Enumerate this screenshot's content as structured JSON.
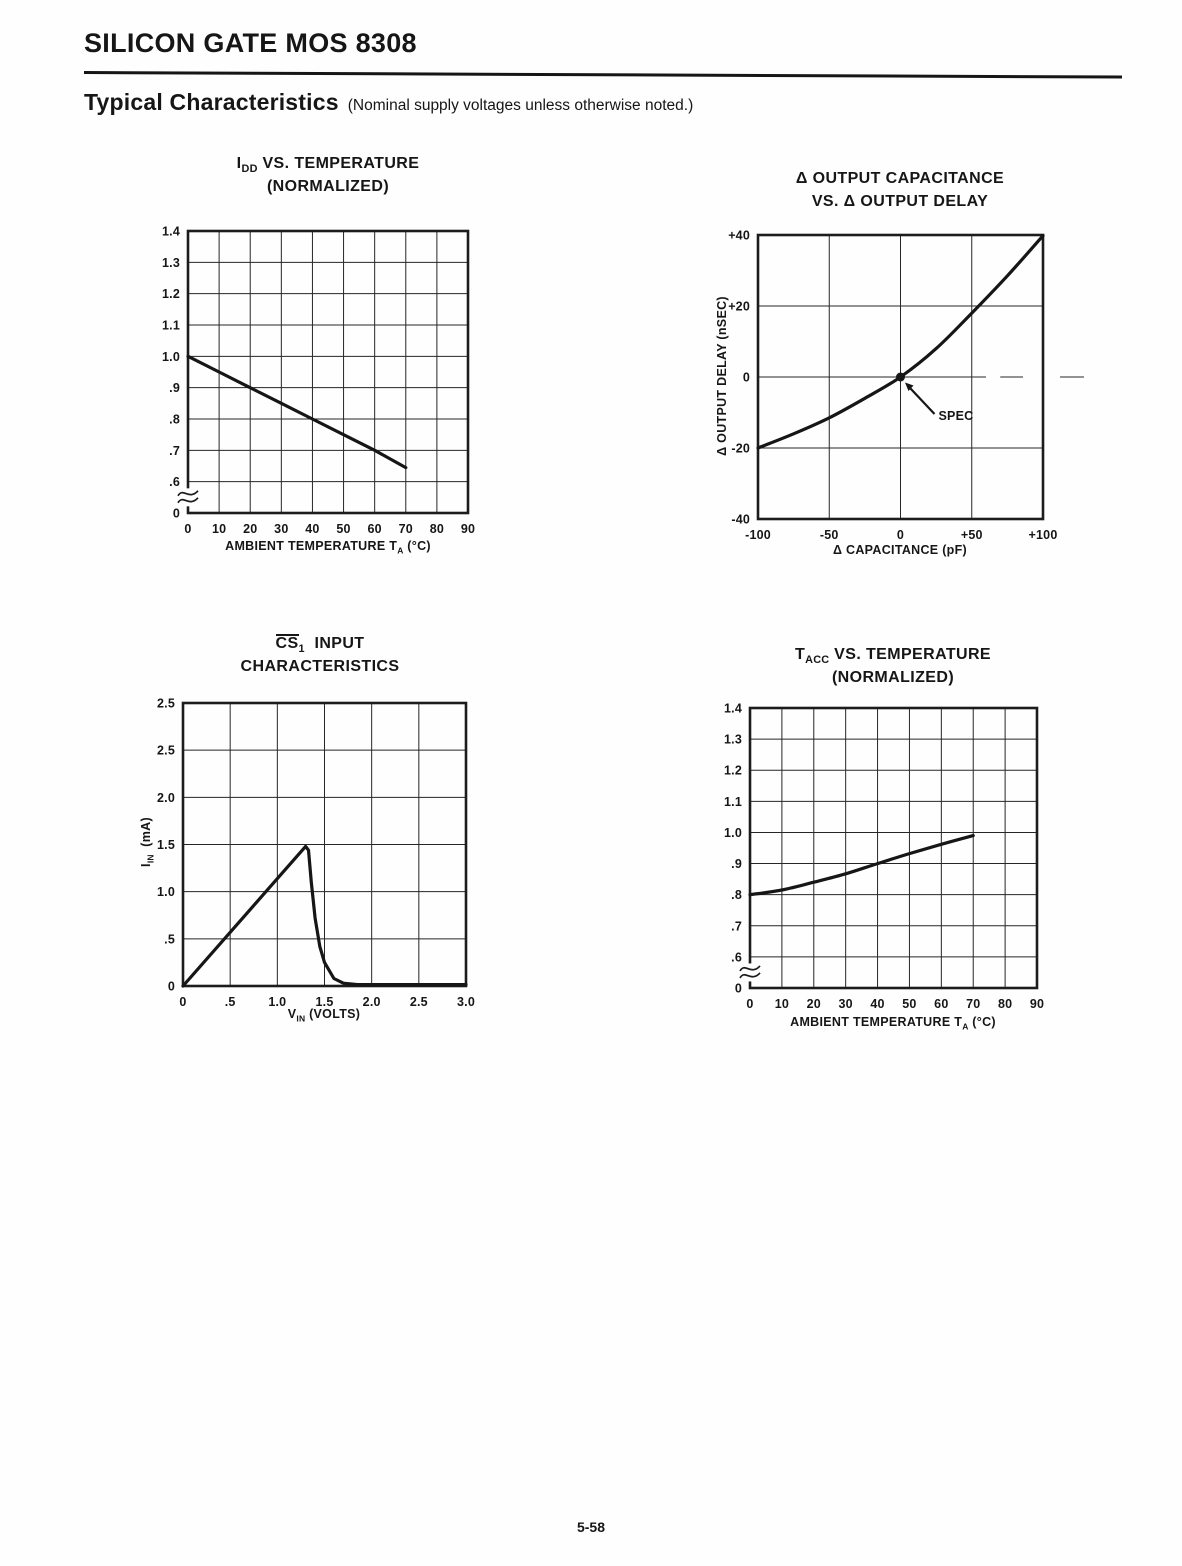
{
  "page": {
    "header_title": "SILICON GATE MOS 8308",
    "section_title": "Typical Characteristics",
    "section_note": "(Nominal supply voltages unless otherwise noted.)",
    "page_number": "5-58"
  },
  "colors": {
    "ink": "#161616",
    "paper": "#fefefe"
  },
  "chart_data": [
    {
      "id": "idd-vs-temperature",
      "type": "line",
      "grid": true,
      "title_lines": [
        [
          {
            "t": "I"
          },
          {
            "t": "DD",
            "sub": true
          },
          {
            "t": " VS. TEMPERATURE"
          }
        ],
        [
          {
            "t": "(NORMALIZED)"
          }
        ]
      ],
      "xlabel": [
        {
          "t": "AMBIENT TEMPERATURE T"
        },
        {
          "t": "A",
          "sub": true
        },
        {
          "t": " (°C)"
        }
      ],
      "ylabel": null,
      "x_ticks": [
        "0",
        "10",
        "20",
        "30",
        "40",
        "50",
        "60",
        "70",
        "80",
        "90"
      ],
      "x_range": [
        0,
        90
      ],
      "y_lines": [
        "1.4",
        "1.3",
        "1.2",
        "1.1",
        "1.0",
        ".9",
        ".8",
        ".7",
        ".6",
        "0"
      ],
      "y_break_after_line": 8,
      "y_map": {
        "v_top": 1.4,
        "v_per_row": 0.1
      },
      "axis_note": "y-axis broken between 0 and .6",
      "series": [
        {
          "name": "IDD (normalized)",
          "points": [
            [
              0,
              1.0
            ],
            [
              10,
              0.95
            ],
            [
              20,
              0.9
            ],
            [
              30,
              0.85
            ],
            [
              40,
              0.8
            ],
            [
              50,
              0.75
            ],
            [
              60,
              0.7
            ],
            [
              70,
              0.645
            ]
          ]
        }
      ]
    },
    {
      "id": "output-capacitance-vs-delay",
      "type": "line",
      "grid": true,
      "title_lines": [
        [
          {
            "t": "Δ OUTPUT CAPACITANCE"
          }
        ],
        [
          {
            "t": "VS. Δ OUTPUT DELAY"
          }
        ]
      ],
      "xlabel": [
        {
          "t": "Δ CAPACITANCE (pF)"
        }
      ],
      "ylabel": [
        {
          "t": "Δ OUTPUT DELAY (nSEC)"
        }
      ],
      "x_ticks": [
        "-100",
        "-50",
        "0",
        "+50",
        "+100"
      ],
      "x_range": [
        -100,
        100
      ],
      "y_lines": [
        "+40",
        "+20",
        "0",
        "-20",
        "-40"
      ],
      "y_map": {
        "v_top": 40,
        "v_per_row": 20
      },
      "zero_dashed_right": true,
      "series": [
        {
          "name": "delta output delay vs delta capacitance",
          "points": [
            [
              -100,
              -20
            ],
            [
              -75,
              -16
            ],
            [
              -50,
              -11.5
            ],
            [
              -25,
              -6
            ],
            [
              0,
              0
            ],
            [
              25,
              8
            ],
            [
              50,
              18
            ],
            [
              75,
              28.5
            ],
            [
              100,
              39.8
            ]
          ]
        }
      ],
      "annotation": {
        "label": "SPEC",
        "at": [
          0,
          0
        ]
      }
    },
    {
      "id": "cs1-input-characteristics",
      "type": "line",
      "grid": true,
      "title_lines": [
        [
          {
            "t": "CS",
            "over": true
          },
          {
            "t": "1",
            "sub": true
          },
          {
            "t": "  INPUT"
          }
        ],
        [
          {
            "t": "CHARACTERISTICS"
          }
        ]
      ],
      "xlabel": [
        {
          "t": "V"
        },
        {
          "t": "IN",
          "sub": true
        },
        {
          "t": " (VOLTS)"
        }
      ],
      "ylabel": [
        {
          "t": "I"
        },
        {
          "t": "IN",
          "sub": true
        },
        {
          "t": "  (mA)"
        }
      ],
      "x_ticks": [
        "0",
        ".5",
        "1.0",
        "1.5",
        "2.0",
        "2.5",
        "3.0"
      ],
      "x_range": [
        0,
        3
      ],
      "y_lines": [
        "2.5",
        "2.5",
        "2.0",
        "1.5",
        "1.0",
        ".5",
        "0"
      ],
      "y_map": {
        "v_top": 3.0,
        "v_per_row": 0.5
      },
      "axis_note": "top gridline printed as 2.5 (duplicate label in original)",
      "series": [
        {
          "name": "IIN vs VIN",
          "points": [
            [
              0,
              0
            ],
            [
              1.3,
              1.48
            ],
            [
              1.33,
              1.44
            ],
            [
              1.36,
              1.1
            ],
            [
              1.4,
              0.72
            ],
            [
              1.45,
              0.42
            ],
            [
              1.5,
              0.25
            ],
            [
              1.6,
              0.08
            ],
            [
              1.7,
              0.03
            ],
            [
              1.85,
              0.015
            ],
            [
              3.0,
              0.015
            ]
          ]
        }
      ]
    },
    {
      "id": "tacc-vs-temperature",
      "type": "line",
      "grid": true,
      "title_lines": [
        [
          {
            "t": "T"
          },
          {
            "t": "ACC",
            "sub": true
          },
          {
            "t": " VS. TEMPERATURE"
          }
        ],
        [
          {
            "t": "(NORMALIZED)"
          }
        ]
      ],
      "xlabel": [
        {
          "t": "AMBIENT TEMPERATURE T"
        },
        {
          "t": "A",
          "sub": true
        },
        {
          "t": " (°C)"
        }
      ],
      "ylabel": null,
      "x_ticks": [
        "0",
        "10",
        "20",
        "30",
        "40",
        "50",
        "60",
        "70",
        "80",
        "90"
      ],
      "x_range": [
        0,
        90
      ],
      "y_lines": [
        "1.4",
        "1.3",
        "1.2",
        "1.1",
        "1.0",
        ".9",
        ".8",
        ".7",
        ".6",
        "0"
      ],
      "y_break_after_line": 8,
      "y_map": {
        "v_top": 1.4,
        "v_per_row": 0.1
      },
      "axis_note": "y-axis broken between 0 and .6",
      "series": [
        {
          "name": "TACC (normalized)",
          "points": [
            [
              0,
              0.8
            ],
            [
              10,
              0.815
            ],
            [
              20,
              0.84
            ],
            [
              30,
              0.867
            ],
            [
              40,
              0.9
            ],
            [
              50,
              0.932
            ],
            [
              60,
              0.962
            ],
            [
              70,
              0.99
            ]
          ]
        }
      ]
    }
  ]
}
